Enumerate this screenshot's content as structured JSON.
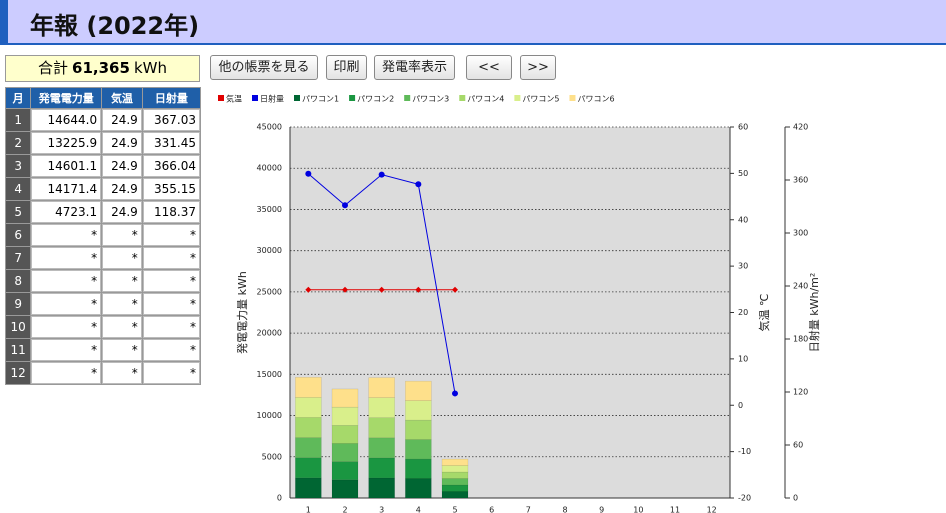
{
  "header": {
    "title": "年報 (2022年)"
  },
  "total": {
    "label": "合計",
    "value": "61,365",
    "unit": "kWh"
  },
  "buttons": [
    "他の帳票を見る",
    "印刷",
    "発電率表示",
    "<<",
    ">>"
  ],
  "table": {
    "header": [
      "月",
      "発電電力量",
      "気温",
      "日射量"
    ],
    "rows": [
      [
        "1",
        "14644.0",
        "24.9",
        "367.03"
      ],
      [
        "2",
        "13225.9",
        "24.9",
        "331.45"
      ],
      [
        "3",
        "14601.1",
        "24.9",
        "366.04"
      ],
      [
        "4",
        "14171.4",
        "24.9",
        "355.15"
      ],
      [
        "5",
        "4723.1",
        "24.9",
        "118.37"
      ],
      [
        "6",
        "*",
        "*",
        "*"
      ],
      [
        "7",
        "*",
        "*",
        "*"
      ],
      [
        "8",
        "*",
        "*",
        "*"
      ],
      [
        "9",
        "*",
        "*",
        "*"
      ],
      [
        "10",
        "*",
        "*",
        "*"
      ],
      [
        "11",
        "*",
        "*",
        "*"
      ],
      [
        "12",
        "*",
        "*",
        "*"
      ]
    ]
  },
  "chart_data": {
    "type": "bar",
    "categories": [
      "1",
      "2",
      "3",
      "4",
      "5",
      "6",
      "7",
      "8",
      "9",
      "10",
      "11",
      "12"
    ],
    "ylabel": "発電電力量 kWh",
    "y2label": "気温 ℃",
    "y3label": "日射量 kWh/m²",
    "ylim": [
      0,
      45000
    ],
    "yticks": [
      0,
      5000,
      10000,
      15000,
      20000,
      25000,
      30000,
      35000,
      40000,
      45000
    ],
    "y2lim": [
      -20,
      60
    ],
    "y2ticks": [
      -20,
      -10,
      0,
      10,
      20,
      30,
      40,
      50,
      60
    ],
    "y3lim": [
      0,
      420
    ],
    "y3ticks": [
      0,
      60,
      120,
      180,
      240,
      300,
      360,
      420
    ],
    "grid": true,
    "series": [
      {
        "name": "気温",
        "type": "line",
        "axis": "y2",
        "color": "#e00000",
        "values": [
          24.9,
          24.9,
          24.9,
          24.9,
          24.9,
          null,
          null,
          null,
          null,
          null,
          null,
          null
        ]
      },
      {
        "name": "日射量",
        "type": "line",
        "axis": "y3",
        "color": "#0000e0",
        "values": [
          367.03,
          331.45,
          366.04,
          355.15,
          118.37,
          null,
          null,
          null,
          null,
          null,
          null,
          null
        ]
      },
      {
        "name": "パワコン1",
        "color": "#006633",
        "values": [
          2440,
          2200,
          2433,
          2362,
          787,
          null,
          null,
          null,
          null,
          null,
          null,
          null
        ]
      },
      {
        "name": "パワコン2",
        "color": "#1a9641",
        "values": [
          2440,
          2205,
          2434,
          2362,
          787,
          null,
          null,
          null,
          null,
          null,
          null,
          null
        ]
      },
      {
        "name": "パワコン3",
        "color": "#5fba5a",
        "values": [
          2440,
          2205,
          2434,
          2362,
          787,
          null,
          null,
          null,
          null,
          null,
          null,
          null
        ]
      },
      {
        "name": "パワコン4",
        "color": "#a6d96a",
        "values": [
          2440,
          2205,
          2434,
          2362,
          787,
          null,
          null,
          null,
          null,
          null,
          null,
          null
        ]
      },
      {
        "name": "パワコン5",
        "color": "#d9ef8b",
        "values": [
          2440,
          2205,
          2433,
          2362,
          787,
          null,
          null,
          null,
          null,
          null,
          null,
          null
        ]
      },
      {
        "name": "パワコン6",
        "color": "#fee08b",
        "values": [
          2444,
          2205.9,
          2433.1,
          2361.4,
          788.1,
          null,
          null,
          null,
          null,
          null,
          null,
          null
        ]
      }
    ]
  }
}
